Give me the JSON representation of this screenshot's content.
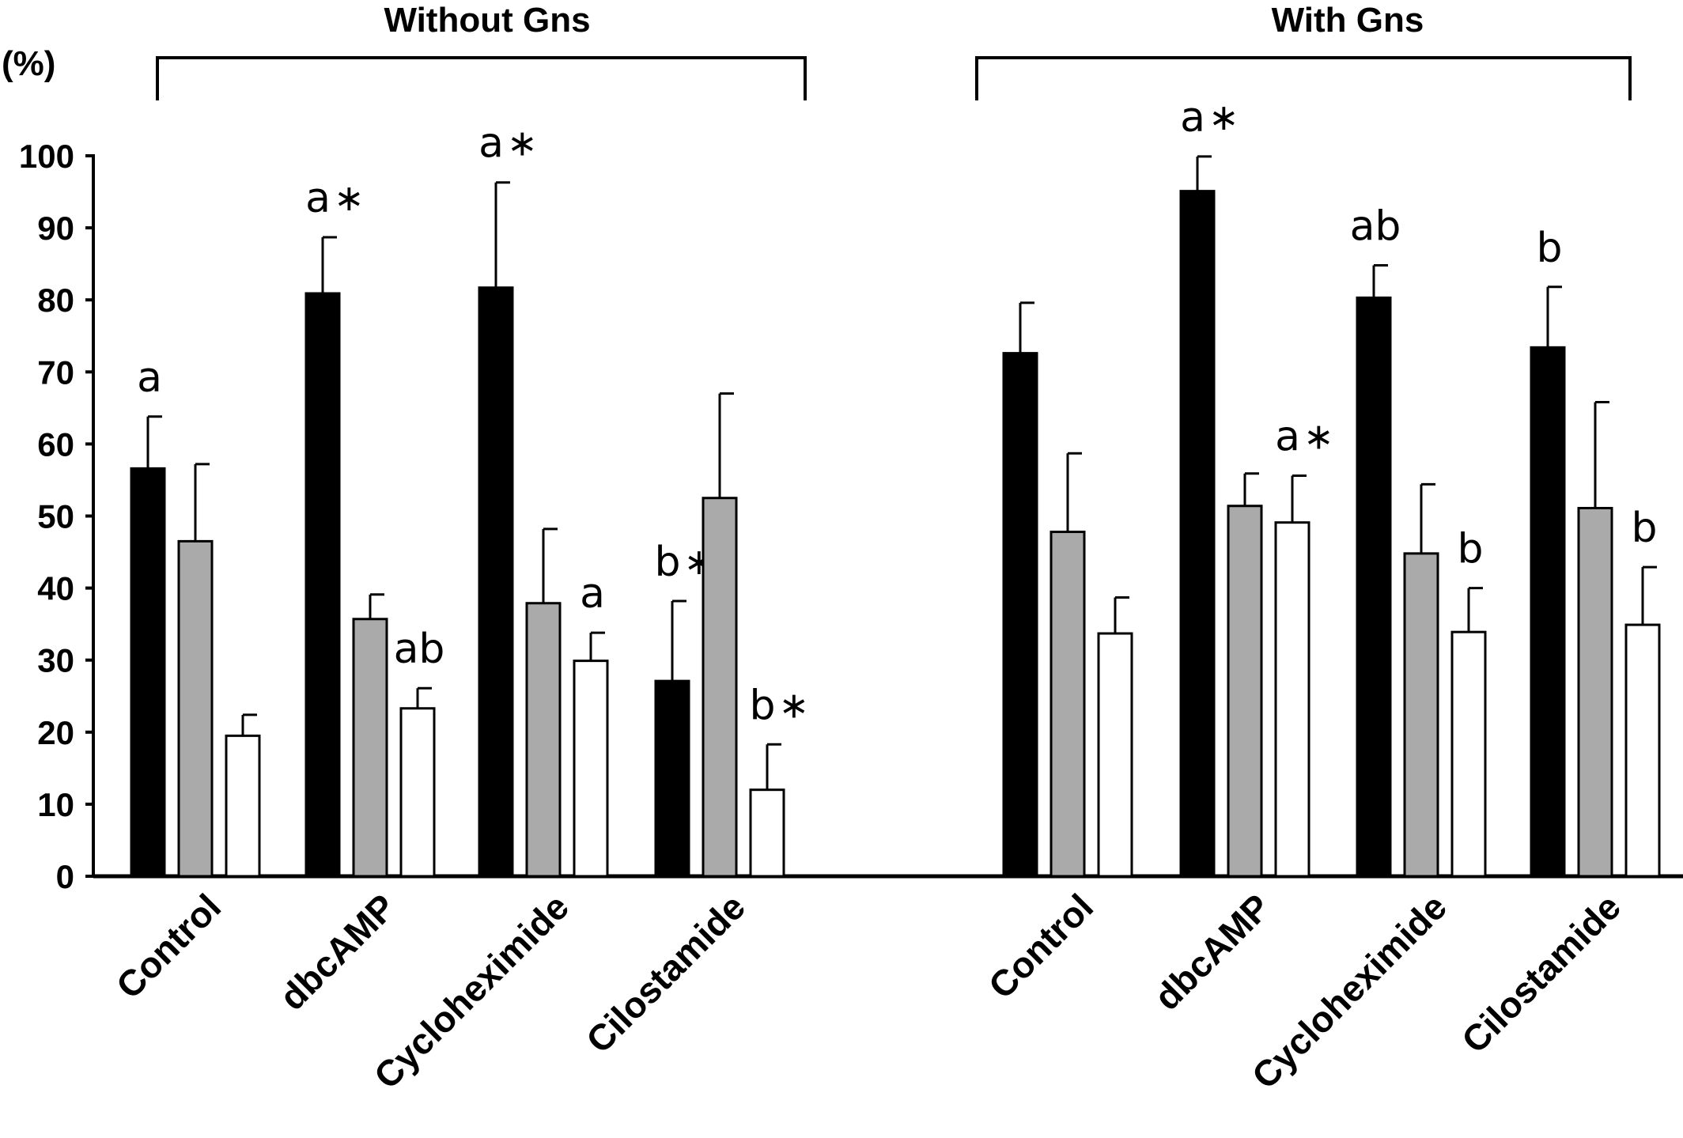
{
  "chart_data": {
    "type": "bar",
    "y_unit": "(%)",
    "ylim": [
      0,
      100
    ],
    "yticks": [
      0,
      10,
      20,
      30,
      40,
      50,
      60,
      70,
      80,
      90,
      100
    ],
    "grid": false,
    "legend": "none",
    "series_colors": [
      "#000000",
      "#aaaaaa",
      "#ffffff"
    ],
    "groups": [
      {
        "title": "Without Gns",
        "categories": [
          "Control",
          "dbcAMP",
          "Cycloheximide",
          "Cilostamide"
        ],
        "series": [
          {
            "values": [
              56.6,
              80.9,
              81.7,
              27.1
            ],
            "errors": [
              7.2,
              7.8,
              14.6,
              11.1
            ]
          },
          {
            "values": [
              46.5,
              35.7,
              37.9,
              52.5
            ],
            "errors": [
              10.7,
              3.4,
              10.3,
              14.5
            ]
          },
          {
            "values": [
              19.5,
              23.3,
              29.9,
              12.0
            ],
            "errors": [
              2.9,
              2.8,
              3.9,
              6.3
            ]
          }
        ],
        "annotations": [
          [
            {
              "text": "a",
              "star": false
            },
            {
              "text": "",
              "star": false
            },
            {
              "text": "",
              "star": false
            }
          ],
          [
            {
              "text": "a",
              "star": true
            },
            {
              "text": "",
              "star": false
            },
            {
              "text": "ab",
              "star": false
            }
          ],
          [
            {
              "text": "a",
              "star": true
            },
            {
              "text": "",
              "star": false
            },
            {
              "text": "a",
              "star": false
            }
          ],
          [
            {
              "text": "b",
              "star": true
            },
            {
              "text": "",
              "star": false
            },
            {
              "text": "b",
              "star": true
            }
          ]
        ]
      },
      {
        "title": "With Gns",
        "categories": [
          "Control",
          "dbcAMP",
          "Cycloheximide",
          "Cilostamide"
        ],
        "series": [
          {
            "values": [
              72.6,
              95.1,
              80.3,
              73.4
            ],
            "errors": [
              7.0,
              4.8,
              4.5,
              8.4
            ]
          },
          {
            "values": [
              47.8,
              51.4,
              44.8,
              51.1
            ],
            "errors": [
              10.9,
              4.5,
              9.6,
              14.7
            ]
          },
          {
            "values": [
              33.7,
              49.1,
              33.9,
              34.9
            ],
            "errors": [
              5.0,
              6.5,
              6.1,
              8.0
            ]
          }
        ],
        "annotations": [
          [
            {
              "text": "",
              "star": false
            },
            {
              "text": "",
              "star": false
            },
            {
              "text": "",
              "star": false
            }
          ],
          [
            {
              "text": "a",
              "star": true
            },
            {
              "text": "",
              "star": false
            },
            {
              "text": "a",
              "star": true
            }
          ],
          [
            {
              "text": "ab",
              "star": false
            },
            {
              "text": "",
              "star": false
            },
            {
              "text": "b",
              "star": false
            }
          ],
          [
            {
              "text": "b",
              "star": false
            },
            {
              "text": "",
              "star": false
            },
            {
              "text": "b",
              "star": false
            }
          ]
        ]
      }
    ]
  }
}
